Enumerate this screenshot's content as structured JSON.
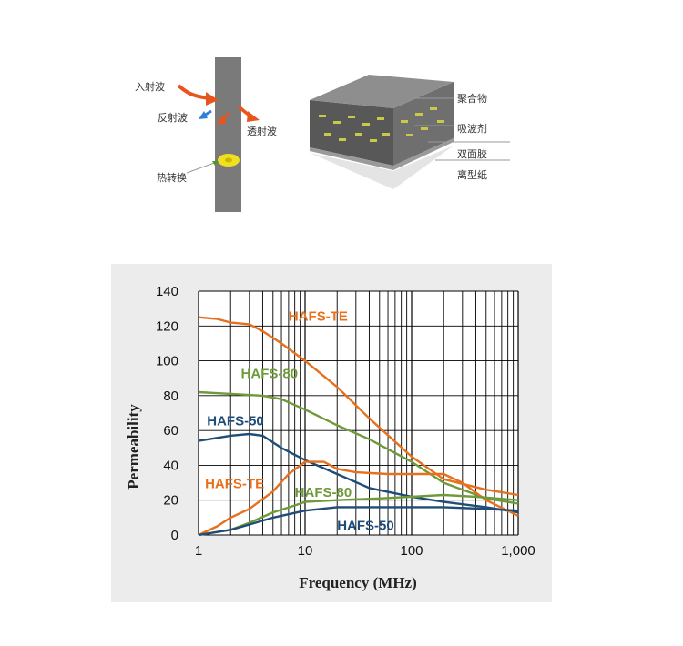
{
  "diagram": {
    "labels": {
      "incident": "入射波",
      "reflected": "反射波",
      "transmitted": "透射波",
      "heat": "热转换"
    },
    "layers": [
      "聚合物",
      "吸波剂",
      "双面胶",
      "离型纸"
    ],
    "colors": {
      "wave": "#e8541c",
      "reflect": "#2f7fd4",
      "wall": "#7a7a7a",
      "heat": "#f0e020"
    }
  },
  "chart_data": {
    "type": "line",
    "xlabel": "Frequency (MHz)",
    "ylabel": "Permeability",
    "xscale": "log",
    "xlim": [
      1,
      1000
    ],
    "ylim": [
      0,
      140
    ],
    "xticks": [
      "1",
      "10",
      "100",
      "1,000"
    ],
    "yticks": [
      "0",
      "20",
      "40",
      "60",
      "80",
      "100",
      "120",
      "140"
    ],
    "grid": true,
    "colors": {
      "orange": "#e8701c",
      "green": "#6e9a3a",
      "blue": "#1f4d78"
    },
    "series": [
      {
        "name": "HAFS-TE",
        "color": "orange",
        "label_at": [
          7,
          123
        ],
        "x": [
          1,
          1.5,
          2,
          3,
          4,
          6,
          10,
          20,
          40,
          100,
          200,
          500,
          1000
        ],
        "y": [
          125,
          124,
          122,
          121,
          117,
          110,
          100,
          85,
          67,
          45,
          32,
          26,
          23
        ]
      },
      {
        "name": "HAFS-80",
        "color": "green",
        "label_at": [
          2.5,
          90
        ],
        "x": [
          1,
          2,
          4,
          6,
          10,
          20,
          40,
          100,
          200,
          500,
          1000
        ],
        "y": [
          82,
          81,
          80,
          78,
          72,
          63,
          55,
          42,
          30,
          21,
          18
        ]
      },
      {
        "name": "HAFS-50",
        "color": "blue",
        "label_at": [
          1.2,
          63
        ],
        "x": [
          1,
          2,
          3,
          4,
          6,
          10,
          20,
          40,
          100,
          200,
          500,
          1000
        ],
        "y": [
          54,
          57,
          58,
          57,
          50,
          43,
          35,
          27,
          22,
          19,
          16,
          13
        ]
      },
      {
        "name": "HAFS-TE",
        "color": "orange",
        "label_at": [
          1.15,
          27
        ],
        "x": [
          1,
          1.5,
          2,
          3,
          5,
          7,
          10,
          15,
          20,
          30,
          60,
          100,
          200,
          300,
          500,
          1000
        ],
        "y": [
          0,
          5,
          10,
          15,
          25,
          35,
          42,
          42,
          38,
          36,
          35,
          35,
          35,
          30,
          20,
          11
        ]
      },
      {
        "name": "HAFS-80",
        "color": "green",
        "label_at": [
          8,
          22
        ],
        "x": [
          1,
          2,
          3,
          5,
          8,
          10,
          20,
          50,
          100,
          200,
          400,
          1000
        ],
        "y": [
          0,
          3,
          7,
          13,
          17,
          19,
          20,
          21,
          22,
          23,
          22,
          20
        ]
      },
      {
        "name": "HAFS-50",
        "color": "blue",
        "label_at": [
          20,
          3
        ],
        "x": [
          1,
          2,
          3,
          5,
          10,
          20,
          50,
          100,
          200,
          500,
          1000
        ],
        "y": [
          0,
          3,
          6,
          10,
          14,
          16,
          16,
          16,
          16,
          15,
          14
        ]
      }
    ]
  }
}
